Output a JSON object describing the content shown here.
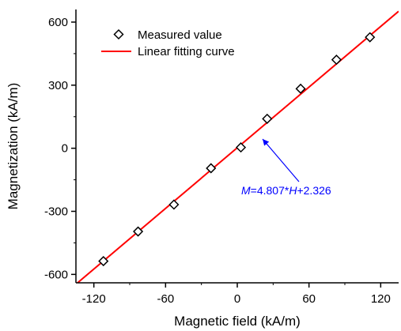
{
  "chart_data": {
    "type": "scatter",
    "xlabel": "Magnetic field (kA/m)",
    "ylabel": "Magnetization (kA/m)",
    "xlim": [
      -135,
      135
    ],
    "ylim": [
      -640,
      660
    ],
    "x_ticks": [
      -120,
      -60,
      0,
      60,
      120
    ],
    "y_ticks": [
      -600,
      -300,
      0,
      300,
      600
    ],
    "x_tick_labels": [
      "-120",
      "-60",
      "0",
      "60",
      "120"
    ],
    "y_tick_labels": [
      "-600",
      "-300",
      "0",
      "300",
      "600"
    ],
    "series": [
      {
        "name": "Measured value",
        "marker": "diamond-open",
        "color": "#000000",
        "x": [
          -112,
          -83,
          -53,
          -22,
          3,
          25,
          53,
          83,
          111
        ],
        "y": [
          -537,
          -396,
          -268,
          -95,
          4,
          140,
          283,
          421,
          528
        ]
      },
      {
        "name": "Linear fitting curve",
        "type": "line",
        "color": "#ff0000",
        "slope": 4.807,
        "intercept": 2.326,
        "x_range": [
          -135,
          135
        ]
      }
    ],
    "annotations": {
      "equation": {
        "var_m": "M",
        "eq_mid": "=4.807*",
        "var_h": "H",
        "eq_tail": "+2.326",
        "color": "#0000ff"
      }
    },
    "legend_position": "top-left",
    "grid": false
  }
}
